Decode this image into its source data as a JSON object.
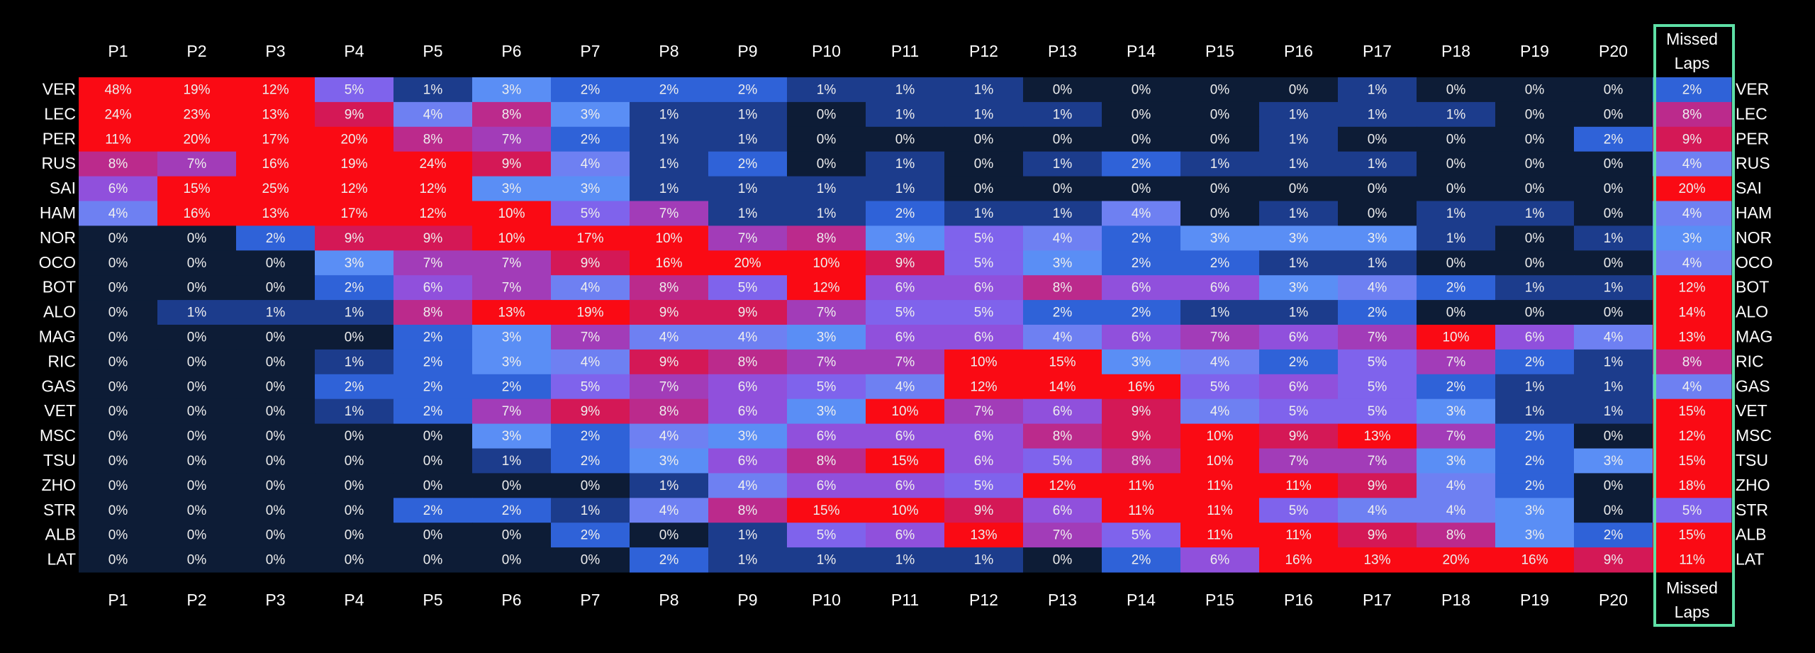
{
  "chart_data": {
    "type": "heatmap",
    "x": [
      "P1",
      "P2",
      "P3",
      "P4",
      "P5",
      "P6",
      "P7",
      "P8",
      "P9",
      "P10",
      "P11",
      "P12",
      "P13",
      "P14",
      "P15",
      "P16",
      "P17",
      "P18",
      "P19",
      "P20",
      "Missed Laps"
    ],
    "y": [
      "VER",
      "LEC",
      "PER",
      "RUS",
      "SAI",
      "HAM",
      "NOR",
      "OCO",
      "BOT",
      "ALO",
      "MAG",
      "RIC",
      "GAS",
      "VET",
      "MSC",
      "TSU",
      "ZHO",
      "STR",
      "ALB",
      "LAT"
    ],
    "values": [
      [
        48,
        19,
        12,
        5,
        1,
        3,
        2,
        2,
        2,
        1,
        1,
        1,
        0,
        0,
        0,
        0,
        1,
        0,
        0,
        0,
        2
      ],
      [
        24,
        23,
        13,
        9,
        4,
        8,
        3,
        1,
        1,
        0,
        1,
        1,
        1,
        0,
        0,
        1,
        1,
        1,
        0,
        0,
        8
      ],
      [
        11,
        20,
        17,
        20,
        8,
        7,
        2,
        1,
        1,
        0,
        0,
        0,
        0,
        0,
        0,
        1,
        0,
        0,
        0,
        2,
        9
      ],
      [
        8,
        7,
        16,
        19,
        24,
        9,
        4,
        1,
        2,
        0,
        1,
        0,
        1,
        2,
        1,
        1,
        1,
        0,
        0,
        0,
        4
      ],
      [
        6,
        15,
        25,
        12,
        12,
        3,
        3,
        1,
        1,
        1,
        1,
        0,
        0,
        0,
        0,
        0,
        0,
        0,
        0,
        0,
        20
      ],
      [
        4,
        16,
        13,
        17,
        12,
        10,
        5,
        7,
        1,
        1,
        2,
        1,
        1,
        4,
        0,
        1,
        0,
        1,
        1,
        0,
        4
      ],
      [
        0,
        0,
        2,
        9,
        9,
        10,
        17,
        10,
        7,
        8,
        3,
        5,
        4,
        2,
        3,
        3,
        3,
        1,
        0,
        1,
        3
      ],
      [
        0,
        0,
        0,
        3,
        7,
        7,
        9,
        16,
        20,
        10,
        9,
        5,
        3,
        2,
        2,
        1,
        1,
        0,
        0,
        0,
        4
      ],
      [
        0,
        0,
        0,
        2,
        6,
        7,
        4,
        8,
        5,
        12,
        6,
        6,
        8,
        6,
        6,
        3,
        4,
        2,
        1,
        1,
        12
      ],
      [
        0,
        1,
        1,
        1,
        8,
        13,
        19,
        9,
        9,
        7,
        5,
        5,
        2,
        2,
        1,
        1,
        2,
        0,
        0,
        0,
        14
      ],
      [
        0,
        0,
        0,
        0,
        2,
        3,
        7,
        4,
        4,
        3,
        6,
        6,
        4,
        6,
        7,
        6,
        7,
        10,
        6,
        4,
        13
      ],
      [
        0,
        0,
        0,
        1,
        2,
        3,
        4,
        9,
        8,
        7,
        7,
        10,
        15,
        3,
        4,
        2,
        5,
        7,
        2,
        1,
        8
      ],
      [
        0,
        0,
        0,
        2,
        2,
        2,
        5,
        7,
        6,
        5,
        4,
        12,
        14,
        16,
        5,
        6,
        5,
        2,
        1,
        1,
        4
      ],
      [
        0,
        0,
        0,
        1,
        2,
        7,
        9,
        8,
        6,
        3,
        10,
        7,
        6,
        9,
        4,
        5,
        5,
        3,
        1,
        1,
        15
      ],
      [
        0,
        0,
        0,
        0,
        0,
        3,
        2,
        4,
        3,
        6,
        6,
        6,
        8,
        9,
        10,
        9,
        13,
        7,
        2,
        0,
        12
      ],
      [
        0,
        0,
        0,
        0,
        0,
        1,
        2,
        3,
        6,
        8,
        15,
        6,
        5,
        8,
        10,
        7,
        7,
        3,
        2,
        3,
        15
      ],
      [
        0,
        0,
        0,
        0,
        0,
        0,
        0,
        1,
        4,
        6,
        6,
        5,
        12,
        11,
        11,
        11,
        9,
        4,
        2,
        0,
        18
      ],
      [
        0,
        0,
        0,
        0,
        2,
        2,
        1,
        4,
        8,
        15,
        10,
        9,
        6,
        11,
        11,
        5,
        4,
        4,
        3,
        0,
        5
      ],
      [
        0,
        0,
        0,
        0,
        0,
        0,
        2,
        0,
        1,
        5,
        6,
        13,
        7,
        5,
        11,
        11,
        9,
        8,
        3,
        2,
        15
      ],
      [
        0,
        0,
        0,
        0,
        0,
        0,
        0,
        2,
        1,
        1,
        1,
        1,
        0,
        2,
        6,
        16,
        13,
        20,
        16,
        9,
        11
      ]
    ],
    "value_labels": [
      [
        "48%",
        "19%",
        "12%",
        "5%",
        "1%",
        "3%",
        "2%",
        "2%",
        "2%",
        "1%",
        "1%",
        "1%",
        "0%",
        "0%",
        "0%",
        "0%",
        "1%",
        "0%",
        "0%",
        "0%",
        "2%"
      ],
      [
        "24%",
        "23%",
        "13%",
        "9%",
        "4%",
        "8%",
        "3%",
        "1%",
        "1%",
        "0%",
        "1%",
        "1%",
        "1%",
        "0%",
        "0%",
        "1%",
        "1%",
        "1%",
        "0%",
        "0%",
        "8%"
      ],
      [
        "11%",
        "20%",
        "17%",
        "20%",
        "8%",
        "7%",
        "2%",
        "1%",
        "1%",
        "0%",
        "0%",
        "0%",
        "0%",
        "0%",
        "0%",
        "1%",
        "0%",
        "0%",
        "0%",
        "2%",
        "9%"
      ],
      [
        "8%",
        "7%",
        "16%",
        "19%",
        "24%",
        "9%",
        "4%",
        "1%",
        "2%",
        "0%",
        "1%",
        "0%",
        "1%",
        "2%",
        "1%",
        "1%",
        "1%",
        "0%",
        "0%",
        "0%",
        "4%"
      ],
      [
        "6%",
        "15%",
        "25%",
        "12%",
        "12%",
        "3%",
        "3%",
        "1%",
        "1%",
        "1%",
        "1%",
        "0%",
        "0%",
        "0%",
        "0%",
        "0%",
        "0%",
        "0%",
        "0%",
        "0%",
        "20%"
      ],
      [
        "4%",
        "16%",
        "13%",
        "17%",
        "12%",
        "10%",
        "5%",
        "7%",
        "1%",
        "1%",
        "2%",
        "1%",
        "1%",
        "4%",
        "0%",
        "1%",
        "0%",
        "1%",
        "1%",
        "0%",
        "4%"
      ],
      [
        "0%",
        "0%",
        "2%",
        "9%",
        "9%",
        "10%",
        "17%",
        "10%",
        "7%",
        "8%",
        "3%",
        "5%",
        "4%",
        "2%",
        "3%",
        "3%",
        "3%",
        "1%",
        "0%",
        "1%",
        "3%"
      ],
      [
        "0%",
        "0%",
        "0%",
        "3%",
        "7%",
        "7%",
        "9%",
        "16%",
        "20%",
        "10%",
        "9%",
        "5%",
        "3%",
        "2%",
        "2%",
        "1%",
        "1%",
        "0%",
        "0%",
        "0%",
        "4%"
      ],
      [
        "0%",
        "0%",
        "0%",
        "2%",
        "6%",
        "7%",
        "4%",
        "8%",
        "5%",
        "12%",
        "6%",
        "6%",
        "8%",
        "6%",
        "6%",
        "3%",
        "4%",
        "2%",
        "1%",
        "1%",
        "12%"
      ],
      [
        "0%",
        "1%",
        "1%",
        "1%",
        "8%",
        "13%",
        "19%",
        "9%",
        "9%",
        "7%",
        "5%",
        "5%",
        "2%",
        "2%",
        "1%",
        "1%",
        "2%",
        "0%",
        "0%",
        "0%",
        "14%"
      ],
      [
        "0%",
        "0%",
        "0%",
        "0%",
        "2%",
        "3%",
        "7%",
        "4%",
        "4%",
        "3%",
        "6%",
        "6%",
        "4%",
        "6%",
        "7%",
        "6%",
        "7%",
        "10%",
        "6%",
        "4%",
        "13%"
      ],
      [
        "0%",
        "0%",
        "0%",
        "1%",
        "2%",
        "3%",
        "4%",
        "9%",
        "8%",
        "7%",
        "7%",
        "10%",
        "15%",
        "3%",
        "4%",
        "2%",
        "5%",
        "7%",
        "2%",
        "1%",
        "8%"
      ],
      [
        "0%",
        "0%",
        "0%",
        "2%",
        "2%",
        "2%",
        "5%",
        "7%",
        "6%",
        "5%",
        "4%",
        "12%",
        "14%",
        "16%",
        "5%",
        "6%",
        "5%",
        "2%",
        "1%",
        "1%",
        "4%"
      ],
      [
        "0%",
        "0%",
        "0%",
        "1%",
        "2%",
        "7%",
        "9%",
        "8%",
        "6%",
        "3%",
        "10%",
        "7%",
        "6%",
        "9%",
        "4%",
        "5%",
        "5%",
        "3%",
        "1%",
        "1%",
        "15%"
      ],
      [
        "0%",
        "0%",
        "0%",
        "0%",
        "0%",
        "3%",
        "2%",
        "4%",
        "3%",
        "6%",
        "6%",
        "6%",
        "8%",
        "9%",
        "10%",
        "9%",
        "13%",
        "7%",
        "2%",
        "0%",
        "12%"
      ],
      [
        "0%",
        "0%",
        "0%",
        "0%",
        "0%",
        "1%",
        "2%",
        "3%",
        "6%",
        "8%",
        "15%",
        "6%",
        "5%",
        "8%",
        "10%",
        "7%",
        "7%",
        "3%",
        "2%",
        "3%",
        "15%"
      ],
      [
        "0%",
        "0%",
        "0%",
        "0%",
        "0%",
        "0%",
        "0%",
        "1%",
        "4%",
        "6%",
        "6%",
        "5%",
        "12%",
        "11%",
        "11%",
        "11%",
        "9%",
        "4%",
        "2%",
        "0%",
        "18%"
      ],
      [
        "0%",
        "0%",
        "0%",
        "0%",
        "2%",
        "2%",
        "1%",
        "4%",
        "8%",
        "15%",
        "10%",
        "9%",
        "6%",
        "11%",
        "11%",
        "5%",
        "4%",
        "4%",
        "3%",
        "0%",
        "5%"
      ],
      [
        "0%",
        "0%",
        "0%",
        "0%",
        "0%",
        "0%",
        "2%",
        "0%",
        "1%",
        "5%",
        "6%",
        "13%",
        "7%",
        "5%",
        "11%",
        "11%",
        "9%",
        "8%",
        "3%",
        "2%",
        "15%"
      ],
      [
        "0%",
        "0%",
        "0%",
        "0%",
        "0%",
        "0%",
        "0%",
        "2%",
        "1%",
        "1%",
        "1%",
        "1%",
        "0%",
        "2%",
        "6%",
        "16%",
        "13%",
        "20%",
        "16%",
        "9%",
        "11%"
      ]
    ],
    "zlim": [
      0,
      10
    ],
    "colormap": [
      "#0d1c36",
      "#1c3c8c",
      "#2f62d8",
      "#5a8ef5",
      "#6e80f2",
      "#7f63ec",
      "#9050dc",
      "#a23cb8",
      "#bb2a8c",
      "#d41856",
      "#fa0a14"
    ]
  }
}
